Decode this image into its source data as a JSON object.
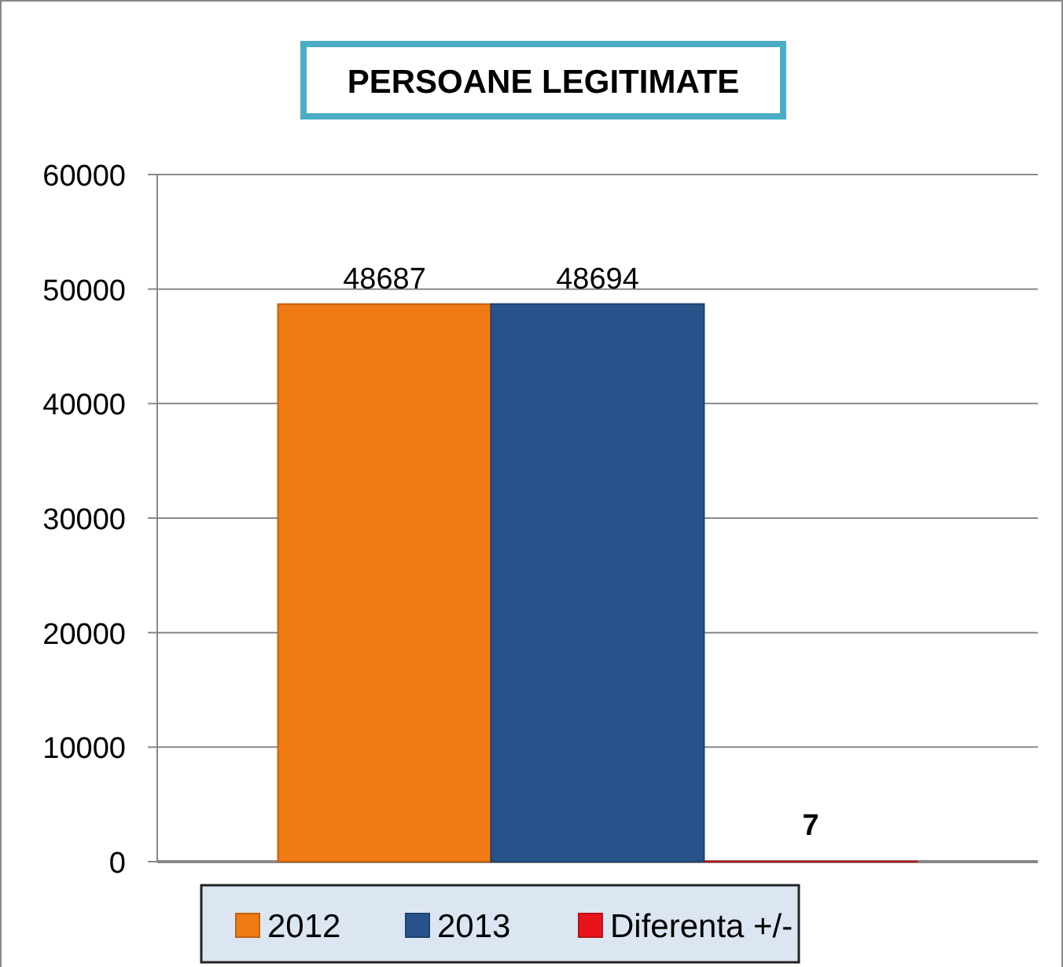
{
  "chart_data": {
    "type": "bar",
    "title": "PERSOANE LEGITIMATE",
    "categories": [
      null
    ],
    "series": [
      {
        "name": "2012",
        "color": "#f07a14",
        "values": [
          48687
        ]
      },
      {
        "name": "2013",
        "color": "#27538a",
        "values": [
          48694
        ]
      },
      {
        "name": "Diferenta +/-",
        "color": "#e8141c",
        "values": [
          7
        ]
      }
    ],
    "ylim": [
      0,
      60000
    ],
    "yticks": [
      0,
      10000,
      20000,
      30000,
      40000,
      50000,
      60000
    ],
    "grid": "y",
    "legend": "bottom",
    "data_labels": true
  }
}
